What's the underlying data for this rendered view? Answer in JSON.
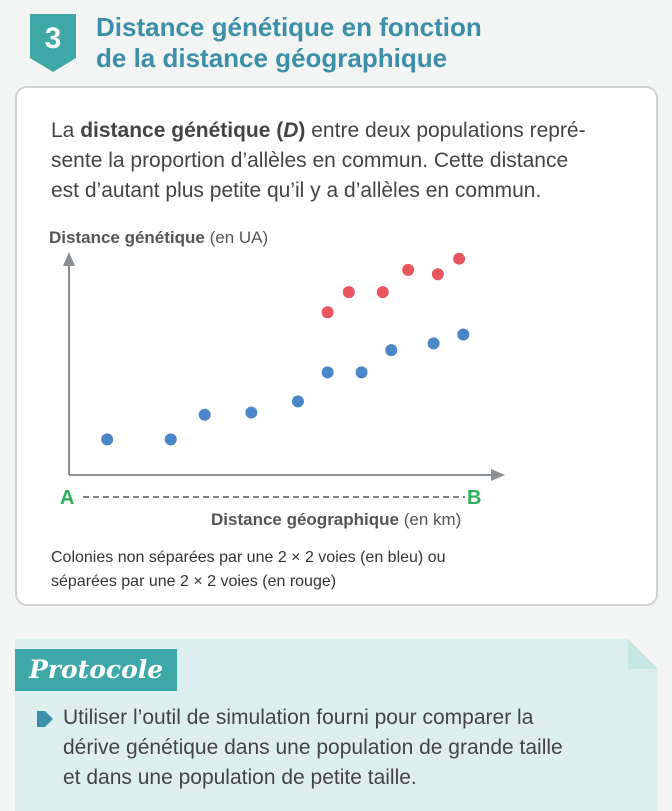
{
  "header": {
    "number": "3",
    "title_line1": "Distance génétique en fonction",
    "title_line2": "de la distance géographique"
  },
  "intro": {
    "prefix": "La ",
    "term": "distance génétique",
    "abbr_open": " (",
    "abbr": "D",
    "abbr_close": ")",
    "line1_rest": " entre deux populations repré-",
    "line2": "sente la proportion d’allèles en commun. Cette distance",
    "line3": "est d’autant plus petite qu’il y a d’allèles en commun."
  },
  "chart_data": {
    "type": "scatter",
    "ylabel": "Distance génétique",
    "ylabel_unit": " (en UA)",
    "xlabel": "Distance géographique",
    "xlabel_unit": " (en km)",
    "x_start_label": "A",
    "x_end_label": "B",
    "xlim": [
      0,
      100
    ],
    "ylim": [
      0,
      100
    ],
    "series": [
      {
        "color": "#4a86c8",
        "points": [
          [
            9,
            16
          ],
          [
            24,
            16
          ],
          [
            32,
            27
          ],
          [
            43,
            28
          ],
          [
            54,
            33
          ],
          [
            61,
            46
          ],
          [
            69,
            46
          ],
          [
            76,
            56
          ],
          [
            86,
            59
          ],
          [
            93,
            63
          ]
        ]
      },
      {
        "color": "#e8555e",
        "points": [
          [
            61,
            73
          ],
          [
            66,
            82
          ],
          [
            74,
            82
          ],
          [
            80,
            92
          ],
          [
            87,
            90
          ],
          [
            92,
            97
          ]
        ]
      }
    ]
  },
  "caption": {
    "line1": "Colonies non séparées par une 2 × 2 voies (en bleu) ou",
    "line2": "séparées par une 2 × 2 voies (en rouge)"
  },
  "protocol": {
    "tag": "Protocole",
    "line1": "Utiliser l’outil de simulation fourni pour comparer la",
    "line2": "dérive génétique dans une population de grande taille",
    "line3": "et dans une population de petite taille."
  },
  "colors": {
    "accent": "#3b8fa8",
    "teal": "#3ea7a8",
    "green_labels": "#2fb05a",
    "blue": "#4a86c8",
    "red": "#e8555e"
  }
}
